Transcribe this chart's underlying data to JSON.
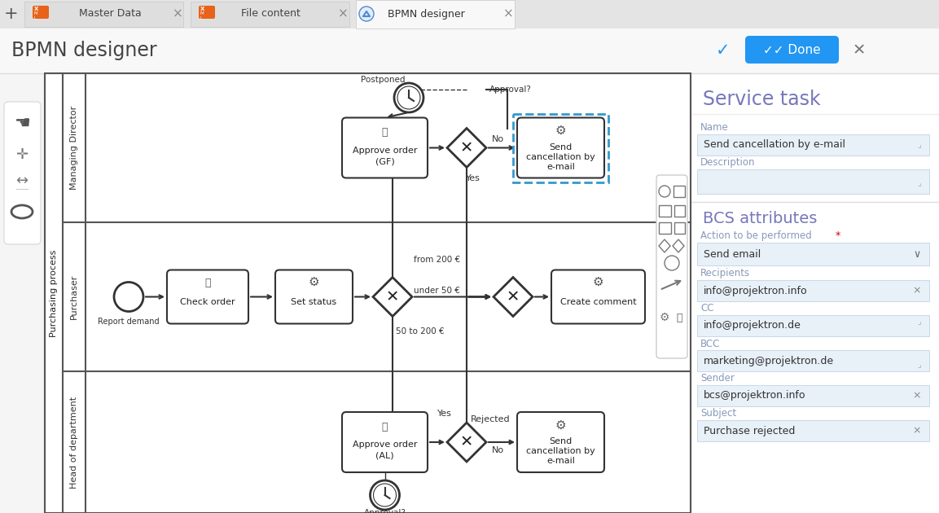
{
  "title": "BPMN designer",
  "bg_color": "#f2f2f2",
  "canvas_bg": "#ffffff",
  "panel_bg": "#ffffff",
  "tab_bar_bg": "#e0e0e0",
  "done_btn_color": "#2196F3",
  "check_color": "#2196F3",
  "service_task_title": "Service task",
  "name_label": "Name",
  "name_value": "Send cancellation by e-mail",
  "desc_label": "Description",
  "bcs_title": "BCS attributes",
  "action_label": "Action to be performed",
  "action_value": "Send email",
  "recipients_label": "Recipients",
  "recipients_value": "info@projektron.info",
  "cc_label": "CC",
  "cc_value": "info@projektron.de",
  "bcc_label": "BCC",
  "bcc_value": "marketing@projektron.de",
  "sender_label": "Sender",
  "sender_value": "bcs@projektron.info",
  "subject_label": "Subject",
  "subject_value": "Purchase rejected",
  "swimlane_title": "Purchasing process",
  "lane1": "Managing Director",
  "lane2": "Purchaser",
  "lane3": "Head of department",
  "field_bg": "#e8f0f8",
  "field_border": "#c8d8e8",
  "section_title_color": "#7777bb",
  "label_color": "#8899bb",
  "tab_inactive_bg": "#e0e0e0",
  "tab_active_bg": "#f8f8f8",
  "header_bg": "#f8f8f8"
}
